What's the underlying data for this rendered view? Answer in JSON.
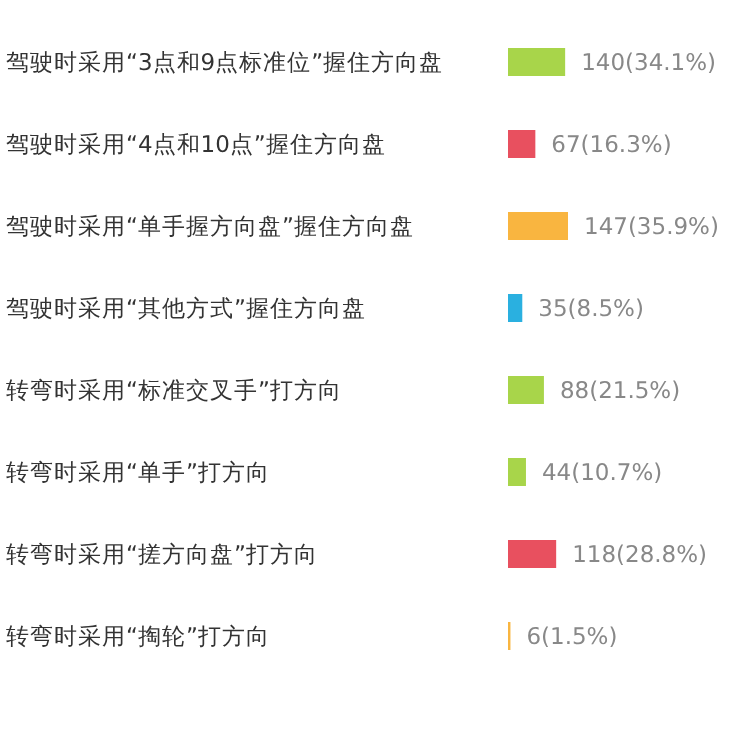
{
  "chart_data": {
    "type": "bar",
    "orientation": "horizontal",
    "categories": [
      "驾驶时采用“3点和9点标准位”握住方向盘",
      "驾驶时采用“4点和10点”握住方向盘",
      "驾驶时采用“单手握方向盘”握住方向盘",
      "驾驶时采用“其他方式”握住方向盘",
      "转弯时采用“标准交叉手”打方向",
      "转弯时采用“单手”打方向",
      "转弯时采用“搓方向盘”打方向",
      "转弯时采用“掏轮”打方向"
    ],
    "values": [
      140,
      67,
      147,
      35,
      88,
      44,
      118,
      6
    ],
    "colors": [
      "#a8d54a",
      "#e8505f",
      "#f9b540",
      "#2ab0e0",
      "#a8d54a",
      "#a8d54a",
      "#e8505f",
      "#f9b540"
    ],
    "value_labels": [
      "140(34.1%)",
      "67(16.3%)",
      "147(35.9%)",
      "35(8.5%)",
      "88(21.5%)",
      "44(10.7%)",
      "118(28.8%)",
      "6(1.5%)"
    ]
  }
}
